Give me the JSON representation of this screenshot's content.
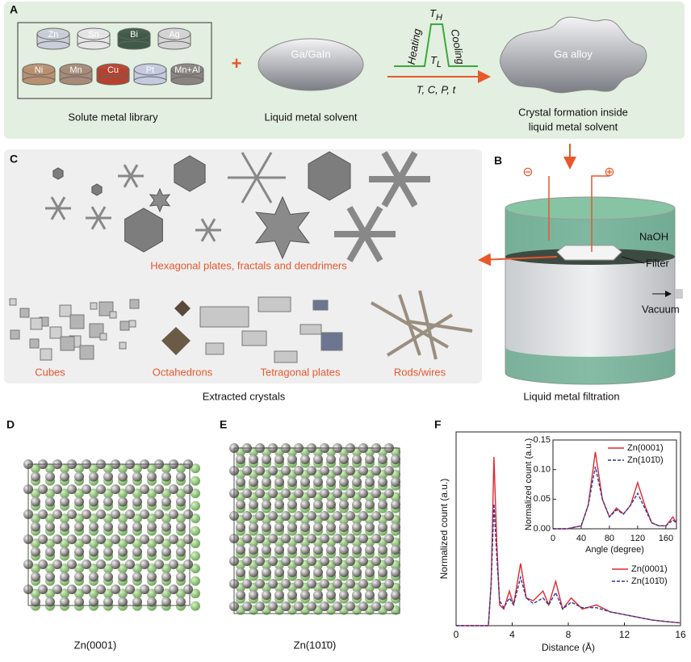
{
  "panels": {
    "labels": [
      "A",
      "B",
      "C",
      "D",
      "E",
      "F"
    ]
  },
  "panel_a": {
    "library": [
      "Zn",
      "Sn",
      "Bi",
      "Ag",
      "Ni",
      "Mn",
      "Cu",
      "Pt",
      "Mn+Al"
    ],
    "library_caption": "Solute metal library",
    "plus": "+",
    "solvent_label": "Ga/GaIn",
    "solvent_caption": "Liquid metal solvent",
    "t_high": {
      "base": "T",
      "sub": "H"
    },
    "t_low": {
      "base": "T",
      "sub": "L"
    },
    "heating": "Heating",
    "cooling": "Cooling",
    "conditions": "T, C, P, t",
    "alloy_label": "Ga alloy",
    "alloy_caption": [
      "Crystal formation inside",
      "liquid metal solvent"
    ]
  },
  "panel_b": {
    "minus": "⊖",
    "plus": "⊕",
    "naoh": "NaOH",
    "filter": "Filter",
    "vacuum": "Vacuum",
    "caption": "Liquid metal filtration"
  },
  "panel_c": {
    "hexagonal": "Hexagonal plates, fractals and dendrimers",
    "groups": [
      "Cubes",
      "Octahedrons",
      "Tetragonal plates",
      "Rods/wires"
    ],
    "caption": "Extracted crystals"
  },
  "panel_d": {
    "caption": "Zn(0001)"
  },
  "panel_e": {
    "caption": "Zn(101̄0)"
  },
  "chart_data": [
    {
      "type": "line",
      "xlabel": "Distance (Å)",
      "ylabel": "Normalized count (a.u.)",
      "x": [
        0,
        2.3,
        2.5,
        2.7,
        2.9,
        3.1,
        3.4,
        3.8,
        4.1,
        4.6,
        5.0,
        5.5,
        6.2,
        6.6,
        7.1,
        7.6,
        8.2,
        9,
        10,
        11,
        12,
        13,
        14,
        15,
        16
      ],
      "xlim": [
        0,
        16
      ],
      "xticks": [
        0,
        4,
        8,
        12,
        16
      ],
      "ylim": [
        0,
        1.4
      ],
      "legend": "lower right",
      "series": [
        {
          "name": "Zn(0001)",
          "color": "#e0282e",
          "dash": false,
          "values": [
            0,
            0,
            0.3,
            1.22,
            0.6,
            0.15,
            0.12,
            0.25,
            0.15,
            0.45,
            0.2,
            0.18,
            0.25,
            0.15,
            0.32,
            0.12,
            0.2,
            0.12,
            0.15,
            0.1,
            0.08,
            0.06,
            0.04,
            0.03,
            0.02
          ]
        },
        {
          "name": "Zn(101̄0)",
          "color": "#2b3a9a",
          "dash": true,
          "values": [
            0,
            0,
            0.3,
            0.88,
            0.5,
            0.18,
            0.13,
            0.2,
            0.15,
            0.35,
            0.2,
            0.16,
            0.2,
            0.15,
            0.24,
            0.12,
            0.17,
            0.13,
            0.13,
            0.1,
            0.08,
            0.06,
            0.04,
            0.03,
            0.02
          ]
        }
      ]
    },
    {
      "type": "line",
      "xlabel": "Angle (degree)",
      "ylabel": "Normalized count (a.u.)",
      "x": [
        0,
        20,
        40,
        50,
        60,
        70,
        80,
        90,
        100,
        110,
        120,
        130,
        140,
        150,
        160,
        170,
        175
      ],
      "xlim": [
        0,
        175
      ],
      "xticks": [
        0,
        40,
        80,
        120,
        160
      ],
      "ylim": [
        0,
        0.15
      ],
      "yticks": [
        {
          "value": 0,
          "label": "0.00"
        },
        {
          "value": 0.05,
          "label": "0.05"
        },
        {
          "value": 0.1,
          "label": "0.10"
        },
        {
          "value": 0.15,
          "label": "0.15"
        }
      ],
      "legend": "upper right",
      "series": [
        {
          "name": "Zn(0001)",
          "color": "#e0282e",
          "dash": false,
          "values": [
            0,
            0,
            0.005,
            0.04,
            0.13,
            0.05,
            0.02,
            0.035,
            0.025,
            0.04,
            0.078,
            0.04,
            0.01,
            0.005,
            0.005,
            0.02,
            0.01
          ]
        },
        {
          "name": "Zn(101̄0)",
          "color": "#2b3a9a",
          "dash": true,
          "values": [
            0,
            0,
            0.005,
            0.04,
            0.105,
            0.05,
            0.02,
            0.032,
            0.025,
            0.04,
            0.06,
            0.035,
            0.01,
            0.005,
            0.005,
            0.015,
            0.01
          ]
        }
      ]
    }
  ]
}
